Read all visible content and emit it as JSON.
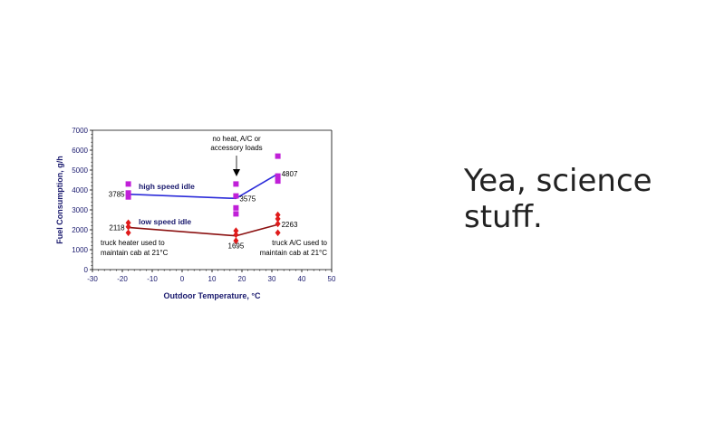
{
  "caption": {
    "line1": "Yea, science",
    "line2": "stuff."
  },
  "chart_data": {
    "type": "line",
    "xlabel": "Outdoor Temperature, °C",
    "ylabel": "Fuel Consumption, g/h",
    "xlim": [
      -30,
      50
    ],
    "ylim": [
      0,
      7000
    ],
    "xticks": [
      "-30",
      "-20",
      "-10",
      "0",
      "10",
      "20",
      "30",
      "40",
      "50"
    ],
    "yticks": [
      "0",
      "1000",
      "2000",
      "3000",
      "4000",
      "5000",
      "6000",
      "7000"
    ],
    "grid": false,
    "series": [
      {
        "name": "high speed idle",
        "color": "#2b2bd9",
        "marker_color": "#c020d8",
        "marker": "square",
        "line_x": [
          -18,
          18,
          32
        ],
        "line_y": [
          3785,
          3575,
          4807
        ],
        "point_labels": [
          "3785",
          "3575",
          "4807"
        ],
        "points": [
          {
            "x": -18,
            "y": 4300
          },
          {
            "x": -18,
            "y": 3850
          },
          {
            "x": -18,
            "y": 3650
          },
          {
            "x": 18,
            "y": 4300
          },
          {
            "x": 18,
            "y": 3700
          },
          {
            "x": 18,
            "y": 3100
          },
          {
            "x": 18,
            "y": 2800
          },
          {
            "x": 32,
            "y": 5700
          },
          {
            "x": 32,
            "y": 4700
          },
          {
            "x": 32,
            "y": 4450
          }
        ]
      },
      {
        "name": "low speed idle",
        "color": "#8b1010",
        "marker_color": "#e01b1b",
        "marker": "diamond",
        "line_x": [
          -18,
          18,
          32
        ],
        "line_y": [
          2118,
          1695,
          2263
        ],
        "point_labels": [
          "2118",
          "1695",
          "2263"
        ],
        "points": [
          {
            "x": -18,
            "y": 2350
          },
          {
            "x": -18,
            "y": 2150
          },
          {
            "x": -18,
            "y": 1850
          },
          {
            "x": 18,
            "y": 1950
          },
          {
            "x": 18,
            "y": 1750
          },
          {
            "x": 18,
            "y": 1450
          },
          {
            "x": 32,
            "y": 2750
          },
          {
            "x": 32,
            "y": 2550
          },
          {
            "x": 32,
            "y": 2300
          },
          {
            "x": 32,
            "y": 1850
          }
        ]
      }
    ],
    "annotations": {
      "no_heat_line1": "no heat, A/C or",
      "no_heat_line2": "accessory loads",
      "heater_line1": "truck heater used to",
      "heater_line2": "maintain cab at 21°C",
      "ac_line1": "truck A/C used to",
      "ac_line2": "maintain cab at 21°C"
    }
  }
}
